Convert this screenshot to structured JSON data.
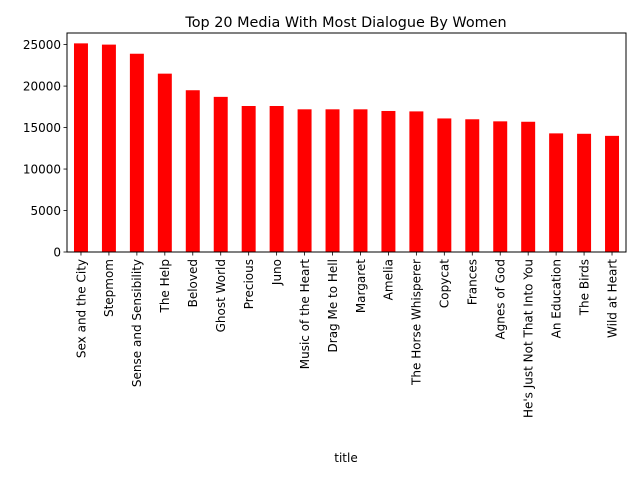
{
  "chart_data": {
    "type": "bar",
    "title": "Top 20 Media With Most Dialogue By Women",
    "xlabel": "title",
    "ylabel": "",
    "ylim": [
      0,
      26400
    ],
    "yticks": [
      0,
      5000,
      10000,
      15000,
      20000,
      25000
    ],
    "grid": false,
    "legend": "none",
    "bar_color": "#ff0000",
    "categories": [
      "Sex and the City",
      "Stepmom",
      "Sense and Sensibility",
      "The Help",
      "Beloved",
      "Ghost World",
      "Precious",
      "Juno",
      "Music of the Heart",
      "Drag Me to Hell",
      "Margaret",
      "Amelia",
      "The Horse Whisperer",
      "Copycat",
      "Frances",
      "Agnes of God",
      "He's Just Not That Into You",
      "An Education",
      "The Birds",
      "Wild at Heart"
    ],
    "values": [
      25150,
      25000,
      23900,
      21500,
      19500,
      18700,
      17600,
      17600,
      17200,
      17200,
      17200,
      17000,
      16950,
      16100,
      16000,
      15750,
      15700,
      14300,
      14250,
      14000
    ]
  }
}
